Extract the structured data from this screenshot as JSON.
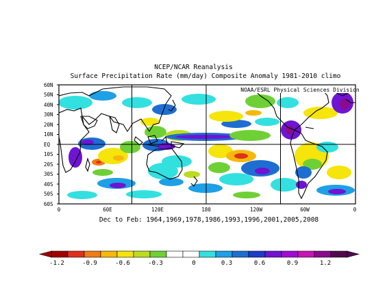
{
  "title_line1": "NCEP/NCAR Reanalysis",
  "title_line2": "Surface Precipitation Rate (mm/day) Composite Anomaly 1981-2010 climo",
  "credit": "NOAA/ESRL Physical Sciences Division",
  "period_label": "Dec to Feb: 1964,1969,1978,1986,1993,1996,2001,2005,2008",
  "lat_ticks": [
    "60N",
    "50N",
    "40N",
    "30N",
    "20N",
    "10N",
    "EQ",
    "10S",
    "20S",
    "30S",
    "40S",
    "50S",
    "60S"
  ],
  "lon_ticks": [
    "0",
    "60E",
    "120E",
    "180",
    "120W",
    "60W",
    "0"
  ],
  "colorbar": {
    "labels": [
      "-1.2",
      "-0.9",
      "-0.6",
      "-0.3",
      "0",
      "0.3",
      "0.6",
      "0.9",
      "1.2"
    ],
    "colors": [
      "#a00000",
      "#e0301e",
      "#f07c14",
      "#f6b80a",
      "#f5e50a",
      "#bedc1f",
      "#6fd036",
      "#ffffff",
      "#ffffff",
      "#33e0e0",
      "#1ea0e6",
      "#1e6ed2",
      "#1e3cc8",
      "#6e14d2",
      "#a00ad2",
      "#c814b4",
      "#8c0a8c",
      "#500a50"
    ]
  }
}
